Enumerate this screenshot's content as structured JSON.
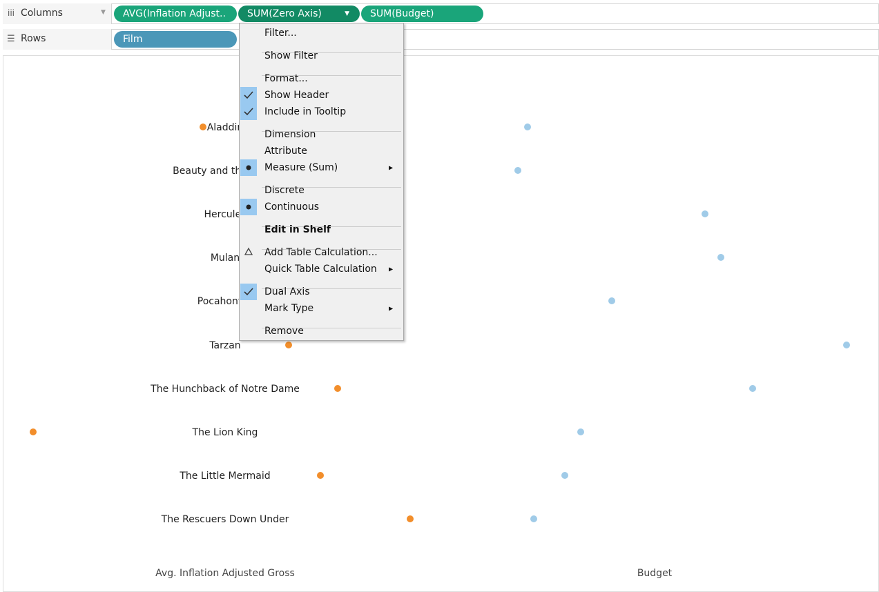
{
  "shelves": {
    "columns": {
      "label": "Columns",
      "pills": [
        {
          "label": "AVG(Inflation Adjust..",
          "color": "#1aa57a"
        },
        {
          "label": "SUM(Zero Axis)",
          "color": "#128a64",
          "active": true
        },
        {
          "label": "SUM(Budget)",
          "color": "#1aa57a"
        }
      ]
    },
    "rows": {
      "label": "Rows",
      "pills": [
        {
          "label": "Film",
          "color": "#4b97b8"
        }
      ]
    }
  },
  "menu": {
    "groups": [
      [
        {
          "label": "Filter..."
        }
      ],
      [
        {
          "label": "Show Filter"
        }
      ],
      [
        {
          "label": "Format..."
        },
        {
          "label": "Show Header",
          "icon": "check"
        },
        {
          "label": "Include in Tooltip",
          "icon": "check"
        }
      ],
      [
        {
          "label": "Dimension"
        },
        {
          "label": "Attribute"
        },
        {
          "label": "Measure (Sum)",
          "icon": "dot",
          "submenu": true
        }
      ],
      [
        {
          "label": "Discrete"
        },
        {
          "label": "Continuous",
          "icon": "dot"
        }
      ],
      [
        {
          "label": "Edit in Shelf",
          "bold": true
        }
      ],
      [
        {
          "label": "Add Table Calculation...",
          "icon": "delta"
        },
        {
          "label": "Quick Table Calculation",
          "submenu": true
        }
      ],
      [
        {
          "label": "Dual Axis",
          "icon": "check"
        },
        {
          "label": "Mark Type",
          "submenu": true
        }
      ],
      [
        {
          "label": "Remove"
        }
      ]
    ]
  },
  "view": {
    "films": [
      "Aladdin",
      "Beauty and the Beast",
      "Hercules",
      "Mulan",
      "Pocahontas",
      "Tarzan",
      "The Hunchback of Notre Dame",
      "The Lion King",
      "The Little Mermaid",
      "The Rescuers Down Under"
    ],
    "axis_titles": [
      "Avg. Inflation Adjusted Gross",
      "Budget"
    ]
  }
}
